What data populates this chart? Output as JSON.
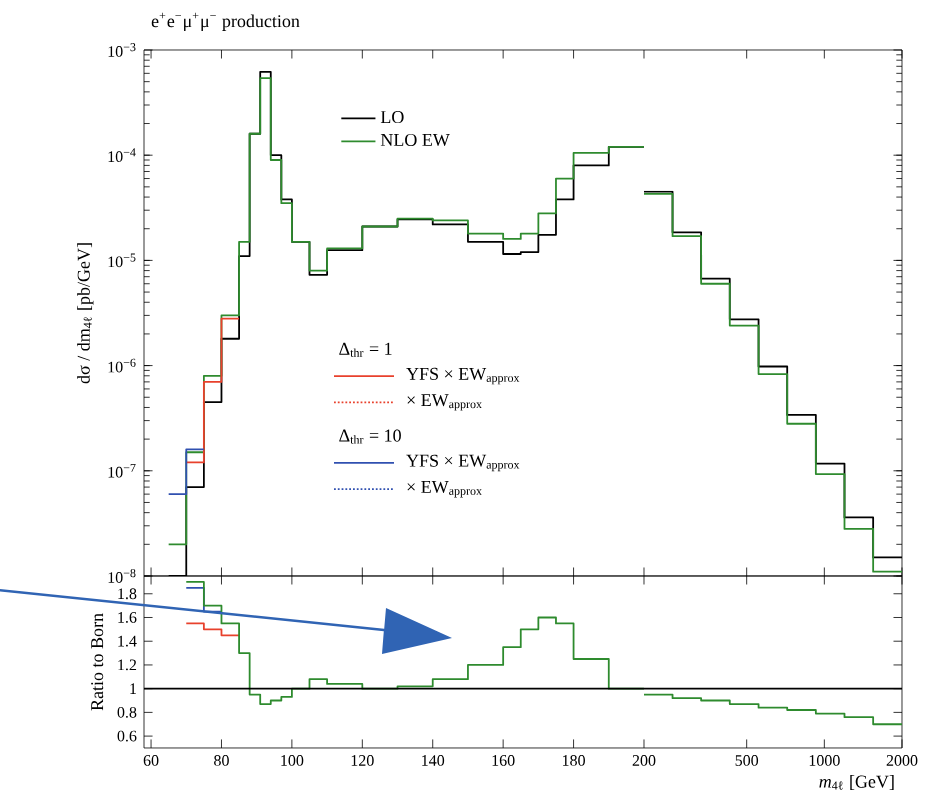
{
  "chart_data": [
    {
      "type": "histogram",
      "title": "e$^{+}$e$^{−}$μ$^{+}$μ$^{−}$ production",
      "ylabel": "dσ / dm$_{4ℓ}$ [pb/GeV]",
      "bins": [
        65,
        70,
        75,
        80,
        85,
        88,
        91,
        94,
        97,
        100,
        105,
        110,
        120,
        130,
        140,
        150,
        160,
        165,
        170,
        175,
        180,
        190,
        200
      ],
      "series": [
        {
          "name": "LO",
          "color": "#000000",
          "values": [
            1e-08,
            7e-08,
            4.5e-07,
            1.8e-06,
            1.1e-05,
            0.00016,
            0.00062,
            0.0001,
            3.8e-05,
            1.5e-05,
            7.3e-06,
            1.25e-05,
            2.1e-05,
            2.45e-05,
            2.2e-05,
            1.5e-05,
            1.15e-05,
            1.2e-05,
            1.75e-05,
            3.8e-05,
            8e-05,
            0.00012
          ]
        },
        {
          "name": "NLO EW",
          "color": "#2e8b2e",
          "values": [
            2e-08,
            1.5e-07,
            8e-07,
            3e-06,
            1.5e-05,
            0.00016,
            0.00054,
            9e-05,
            3.5e-05,
            1.5e-05,
            8e-06,
            1.3e-05,
            2.1e-05,
            2.5e-05,
            2.4e-05,
            1.8e-05,
            1.6e-05,
            1.8e-05,
            2.8e-05,
            6e-05,
            0.000105,
            0.00012
          ]
        },
        {
          "name": "YFS × EW$_{approx}$",
          "color": "#e8412c",
          "line_style": "solid",
          "bins": [
            70,
            75,
            80,
            85
          ],
          "values": [
            1.2e-07,
            7e-07,
            2.8e-06
          ]
        },
        {
          "name": "YFS × EW$_{approx}$",
          "color": "#3050b0",
          "line_style": "solid",
          "bins": [
            65,
            70,
            75
          ],
          "values": [
            6e-08,
            1.6e-07
          ]
        }
      ],
      "annotations": [
        "Δ$_{thr}$ = 1",
        "× EW$_{approx}$",
        "Δ$_{thr}$ = 10",
        "× EW$_{approx}$"
      ],
      "xlim": [
        58,
        200
      ],
      "xticks": [
        60,
        80,
        100,
        120,
        140,
        160,
        180,
        200
      ],
      "ylim": [
        1e-08,
        0.001
      ],
      "yticks": [
        {
          "value": 1e-08,
          "label": "10$^{−8}$"
        },
        {
          "value": 1e-07,
          "label": "10$^{−7}$"
        },
        {
          "value": 1e-06,
          "label": "10$^{−6}$"
        },
        {
          "value": 1e-05,
          "label": "10$^{−5}$"
        },
        {
          "value": 0.0001,
          "label": "10$^{−4}$"
        },
        {
          "value": 0.001,
          "label": "10$^{−3}$"
        }
      ],
      "log": "y",
      "tick_labels": "y",
      "legend": "top"
    },
    {
      "type": "histogram",
      "bins": [
        200,
        258,
        333,
        430,
        556,
        718,
        927,
        1197,
        1546,
        2000
      ],
      "series": [
        {
          "color": "#000000",
          "values": [
            4.5e-05,
            1.85e-05,
            6.7e-06,
            2.75e-06,
            9.8e-07,
            3.4e-07,
            1.17e-07,
            3.6e-08,
            1.5e-08
          ]
        },
        {
          "color": "#2e8b2e",
          "values": [
            4.3e-05,
            1.7e-05,
            6e-06,
            2.4e-06,
            8.3e-07,
            2.8e-07,
            9.3e-08,
            2.8e-08,
            1.1e-08
          ]
        }
      ],
      "xlim": [
        200,
        2000
      ],
      "xticks": [
        500,
        1000,
        2000
      ],
      "ylim": [
        1e-08,
        0.001
      ],
      "yticks": [
        1e-08,
        1e-07,
        1e-06,
        1e-05,
        0.0001,
        0.001
      ],
      "log": "xy",
      "tick_labels": false
    },
    {
      "type": "histogram",
      "ylabel": "Ratio to Born",
      "bins": [
        70,
        75,
        80,
        85,
        88,
        91,
        94,
        97,
        100,
        105,
        110,
        120,
        130,
        140,
        150,
        160,
        165,
        170,
        175,
        180,
        190,
        200
      ],
      "series": [
        {
          "color": "#e8412c",
          "bins": [
            70,
            75,
            80,
            85
          ],
          "values": [
            1.55,
            1.5,
            1.45
          ]
        },
        {
          "color": "#3050b0",
          "bins": [
            70,
            75,
            80
          ],
          "values": [
            1.85,
            1.65
          ]
        },
        {
          "color": "#2e8b2e",
          "values": [
            1.9,
            1.7,
            1.55,
            1.3,
            0.95,
            0.87,
            0.9,
            0.93,
            1.0,
            1.08,
            1.04,
            1.0,
            1.02,
            1.08,
            1.2,
            1.35,
            1.5,
            1.6,
            1.55,
            1.25,
            1.0
          ]
        }
      ],
      "ref_lines": [
        {
          "axis": "y",
          "value": 1,
          "color": "#000000"
        }
      ],
      "xlim": [
        58,
        200
      ],
      "xticks": [
        60,
        80,
        100,
        120,
        140,
        160,
        180,
        200
      ],
      "ylim": [
        0.5,
        1.95
      ],
      "yticks": [
        0.6,
        0.8,
        1,
        1.2,
        1.4,
        1.6,
        1.8
      ]
    },
    {
      "type": "histogram",
      "xlabel": "*m*$_{4ℓ}$ [GeV]",
      "bins": [
        200,
        258,
        333,
        430,
        556,
        718,
        927,
        1197,
        1546,
        2000
      ],
      "series": [
        {
          "color": "#2e8b2e",
          "values": [
            0.95,
            0.92,
            0.9,
            0.87,
            0.84,
            0.82,
            0.79,
            0.76,
            0.7
          ]
        }
      ],
      "ref_lines": [
        {
          "axis": "y",
          "value": 1,
          "color": "#000000"
        }
      ],
      "xlim": [
        200,
        2000
      ],
      "xticks": [
        500,
        1000,
        2000
      ],
      "ylim": [
        0.5,
        1.95
      ],
      "yticks": [
        0.6,
        0.8,
        1,
        1.2,
        1.4,
        1.6,
        1.8
      ],
      "log": "x",
      "tick_labels": "x"
    }
  ]
}
